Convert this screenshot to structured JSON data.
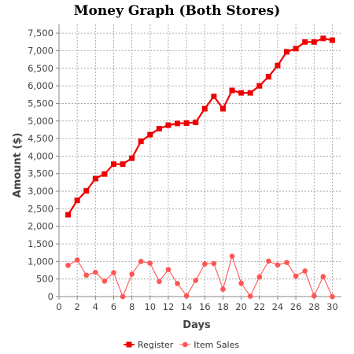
{
  "chart_data": {
    "type": "line",
    "title": "Money Graph (Both Stores)",
    "xlabel": "Days",
    "ylabel": "Amount ($)",
    "xlim": [
      0,
      31
    ],
    "ylim": [
      0,
      7750
    ],
    "x_ticks": [
      0,
      2,
      4,
      6,
      8,
      10,
      12,
      14,
      16,
      18,
      20,
      22,
      24,
      26,
      28,
      30
    ],
    "x_tick_labels": [
      "0",
      "2",
      "4",
      "6",
      "8",
      "10",
      "12",
      "14",
      "16",
      "18",
      "20",
      "22",
      "24",
      "26",
      "28",
      "30"
    ],
    "y_ticks": [
      0,
      500,
      1000,
      1500,
      2000,
      2500,
      3000,
      3500,
      4000,
      4500,
      5000,
      5500,
      6000,
      6500,
      7000,
      7500
    ],
    "y_tick_labels": [
      "0",
      "500",
      "1,000",
      "1,500",
      "2,000",
      "2,500",
      "3,000",
      "3,500",
      "4,000",
      "4,500",
      "5,000",
      "5,500",
      "6,000",
      "6,500",
      "7,000",
      "7,500"
    ],
    "grid": true,
    "legend_position": "bottom",
    "x": [
      1,
      2,
      3,
      4,
      5,
      6,
      7,
      8,
      9,
      10,
      11,
      12,
      13,
      14,
      15,
      16,
      17,
      18,
      19,
      20,
      21,
      22,
      23,
      24,
      25,
      26,
      27,
      28,
      29,
      30
    ],
    "series": [
      {
        "name": "Register",
        "color": "#ee0000",
        "marker": "square",
        "values": [
          2330,
          2740,
          3010,
          3360,
          3490,
          3770,
          3770,
          3940,
          4420,
          4610,
          4780,
          4880,
          4930,
          4940,
          4960,
          5350,
          5700,
          5350,
          5870,
          5800,
          5800,
          6000,
          6260,
          6580,
          6970,
          7060,
          7250,
          7250,
          7350,
          7300
        ]
      },
      {
        "name": "Item Sales",
        "color": "#ff5555",
        "marker": "circle",
        "values": [
          890,
          1040,
          610,
          690,
          440,
          680,
          0,
          640,
          1000,
          950,
          430,
          770,
          370,
          20,
          460,
          930,
          940,
          210,
          1150,
          380,
          10,
          560,
          1010,
          900,
          970,
          580,
          730,
          20,
          570,
          0
        ]
      }
    ]
  }
}
